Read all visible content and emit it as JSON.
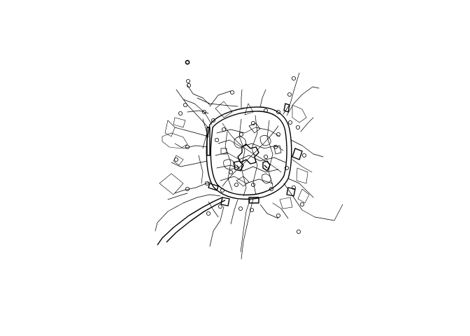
{
  "map": {
    "type": "street-network-plot",
    "background_color": "#ffffff",
    "line_color": "#000000",
    "marker": "hollow-circle",
    "labels_visible": false
  }
}
